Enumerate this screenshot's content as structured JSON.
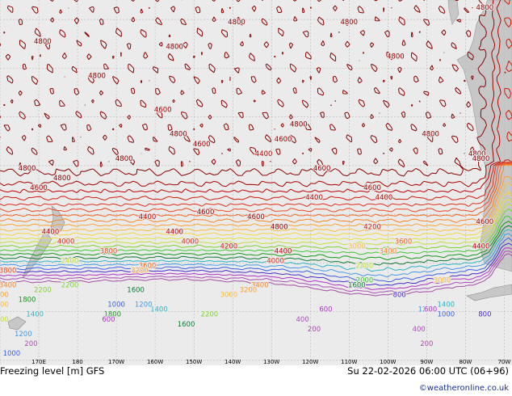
{
  "map": {
    "title": "Freezing level [m] GFS",
    "run": "Su 22-02-2026 06:00 UTC (06+96)",
    "credit": "©weatheronline.co.uk",
    "colors": {
      "background": "#ebebeb",
      "land": "#c7c7c7",
      "grid": "#b9b9b9"
    },
    "longitude_labels": [
      "170E",
      "180",
      "170W",
      "160W",
      "150W",
      "140W",
      "130W",
      "120W",
      "110W",
      "100W",
      "90W",
      "80W",
      "70W"
    ],
    "contour_levels": [
      {
        "value": "4800",
        "color": "#8b0000"
      },
      {
        "value": "4600",
        "color": "#a60000"
      },
      {
        "value": "4400",
        "color": "#c00000"
      },
      {
        "value": "4200",
        "color": "#d11a0a"
      },
      {
        "value": "4000",
        "color": "#e0301a"
      },
      {
        "value": "3800",
        "color": "#ee4a1c"
      },
      {
        "value": "3600",
        "color": "#f5631d"
      },
      {
        "value": "3400",
        "color": "#f98324"
      },
      {
        "value": "3200",
        "color": "#fba232"
      },
      {
        "value": "3000",
        "color": "#fbbc3d"
      },
      {
        "value": "2800",
        "color": "#f7d53d"
      },
      {
        "value": "2600",
        "color": "#e4e23a"
      },
      {
        "value": "2400",
        "color": "#c3e035"
      },
      {
        "value": "2200",
        "color": "#7fd32c"
      },
      {
        "value": "2000",
        "color": "#3ec82e"
      },
      {
        "value": "1800",
        "color": "#139b15"
      },
      {
        "value": "1600",
        "color": "#0d7c35"
      },
      {
        "value": "1400",
        "color": "#2bb4c6"
      },
      {
        "value": "1200",
        "color": "#4499e9"
      },
      {
        "value": "1000",
        "color": "#3d5fe8"
      },
      {
        "value": "800",
        "color": "#4a2dcc"
      },
      {
        "value": "600",
        "color": "#b033c9"
      },
      {
        "value": "400",
        "color": "#a850b8"
      },
      {
        "value": "200",
        "color": "#a44ea6"
      }
    ],
    "labels": [
      {
        "text": "4800",
        "level": "4800",
        "lon": 171,
        "lat": 5
      },
      {
        "text": "4800",
        "level": "4800",
        "lon": 167,
        "lat": -21
      },
      {
        "text": "4800",
        "level": "4800",
        "lon": 176,
        "lat": -23
      },
      {
        "text": "4800",
        "level": "4800",
        "lon": 185,
        "lat": -2
      },
      {
        "text": "4800",
        "level": "4800",
        "lon": 205,
        "lat": 4
      },
      {
        "text": "4800",
        "level": "4800",
        "lon": 221,
        "lat": 9
      },
      {
        "text": "4800",
        "level": "4800",
        "lon": 250,
        "lat": 9
      },
      {
        "text": "4800",
        "level": "4800",
        "lon": 262,
        "lat": 2
      },
      {
        "text": "4800",
        "level": "4800",
        "lon": 285,
        "lat": 12
      },
      {
        "text": "4800",
        "level": "4800",
        "lon": 271,
        "lat": -14
      },
      {
        "text": "4800",
        "level": "4800",
        "lon": 283,
        "lat": -18
      },
      {
        "text": "4800",
        "level": "4800",
        "lon": 237,
        "lat": -12
      },
      {
        "text": "4800",
        "level": "4800",
        "lon": 206,
        "lat": -14
      },
      {
        "text": "4800",
        "level": "4800",
        "lon": 192,
        "lat": -19
      },
      {
        "text": "4800",
        "level": "4800",
        "lon": 232,
        "lat": -33
      },
      {
        "text": "4800",
        "level": "4800",
        "lon": 284,
        "lat": -19
      },
      {
        "text": "4600",
        "level": "4600",
        "lon": 202,
        "lat": -9
      },
      {
        "text": "4600",
        "level": "4600",
        "lon": 212,
        "lat": -16
      },
      {
        "text": "4600",
        "level": "4600",
        "lon": 233,
        "lat": -15
      },
      {
        "text": "4600",
        "level": "4600",
        "lon": 243,
        "lat": -21
      },
      {
        "text": "4600",
        "level": "4600",
        "lon": 256,
        "lat": -25
      },
      {
        "text": "4600",
        "level": "4600",
        "lon": 170,
        "lat": -25
      },
      {
        "text": "4600",
        "level": "4600",
        "lon": 213,
        "lat": -30
      },
      {
        "text": "4600",
        "level": "4600",
        "lon": 226,
        "lat": -31
      },
      {
        "text": "4600",
        "level": "4600",
        "lon": 285,
        "lat": -32
      },
      {
        "text": "4400",
        "level": "4400",
        "lon": 228,
        "lat": -18
      },
      {
        "text": "4400",
        "level": "4400",
        "lon": 241,
        "lat": -27
      },
      {
        "text": "4400",
        "level": "4400",
        "lon": 259,
        "lat": -27
      },
      {
        "text": "4400",
        "level": "4400",
        "lon": 198,
        "lat": -31
      },
      {
        "text": "4400",
        "level": "4400",
        "lon": 205,
        "lat": -34
      },
      {
        "text": "4400",
        "level": "4400",
        "lon": 173,
        "lat": -34
      },
      {
        "text": "4400",
        "level": "4400",
        "lon": 233,
        "lat": -38
      },
      {
        "text": "4400",
        "level": "4400",
        "lon": 284,
        "lat": -37
      },
      {
        "text": "4200",
        "level": "4200",
        "lon": 256,
        "lat": -33
      },
      {
        "text": "4200",
        "level": "4200",
        "lon": 219,
        "lat": -37
      },
      {
        "text": "4000",
        "level": "4000",
        "lon": 177,
        "lat": -36
      },
      {
        "text": "4000",
        "level": "4000",
        "lon": 209,
        "lat": -36
      },
      {
        "text": "4000",
        "level": "4000",
        "lon": 231,
        "lat": -40
      },
      {
        "text": "3600",
        "level": "3600",
        "lon": 264,
        "lat": -36
      },
      {
        "text": "3600",
        "level": "3600",
        "lon": 198,
        "lat": -41
      },
      {
        "text": "3800",
        "level": "3800",
        "lon": 188,
        "lat": -38
      },
      {
        "text": "3800",
        "level": "3800",
        "lon": 162,
        "lat": -42
      },
      {
        "text": "3400",
        "level": "3400",
        "lon": 162,
        "lat": -45
      },
      {
        "text": "3400",
        "level": "3400",
        "lon": 227,
        "lat": -45
      },
      {
        "text": "3400",
        "level": "3400",
        "lon": 260,
        "lat": -38
      },
      {
        "text": "3200",
        "level": "3200",
        "lon": 196,
        "lat": -42
      },
      {
        "text": "3200",
        "level": "3200",
        "lon": 224,
        "lat": -46
      },
      {
        "text": "3200",
        "level": "3200",
        "lon": 160,
        "lat": -47
      },
      {
        "text": "3000",
        "level": "3000",
        "lon": 252,
        "lat": -37
      },
      {
        "text": "3000",
        "level": "3000",
        "lon": 274,
        "lat": -44
      },
      {
        "text": "3000",
        "level": "3000",
        "lon": 160,
        "lat": -49
      },
      {
        "text": "3000",
        "level": "3000",
        "lon": 219,
        "lat": -47
      },
      {
        "text": "2400",
        "level": "2400",
        "lon": 178,
        "lat": -40
      },
      {
        "text": "2400",
        "level": "2400",
        "lon": 254,
        "lat": -41
      },
      {
        "text": "2400",
        "level": "2400",
        "lon": 160,
        "lat": -52
      },
      {
        "text": "2200",
        "level": "2200",
        "lon": 171,
        "lat": -46
      },
      {
        "text": "2200",
        "level": "2200",
        "lon": 178,
        "lat": -45
      },
      {
        "text": "2200",
        "level": "2200",
        "lon": 214,
        "lat": -51
      },
      {
        "text": "2000",
        "level": "2000",
        "lon": 254,
        "lat": -44
      },
      {
        "text": "1600",
        "level": "1600",
        "lon": 195,
        "lat": -46
      },
      {
        "text": "1600",
        "level": "1600",
        "lon": 252,
        "lat": -45
      },
      {
        "text": "1600",
        "level": "1600",
        "lon": 208,
        "lat": -53
      },
      {
        "text": "1800",
        "level": "1800",
        "lon": 167,
        "lat": -48
      },
      {
        "text": "1800",
        "level": "1800",
        "lon": 189,
        "lat": -51
      },
      {
        "text": "1400",
        "level": "1400",
        "lon": 169,
        "lat": -51
      },
      {
        "text": "1400",
        "level": "1400",
        "lon": 201,
        "lat": -50
      },
      {
        "text": "1400",
        "level": "1400",
        "lon": 275,
        "lat": -49
      },
      {
        "text": "1200",
        "level": "1200",
        "lon": 197,
        "lat": -49
      },
      {
        "text": "1200",
        "level": "1200",
        "lon": 166,
        "lat": -55
      },
      {
        "text": "1200",
        "level": "1200",
        "lon": 270,
        "lat": -50
      },
      {
        "text": "1000",
        "level": "1000",
        "lon": 190,
        "lat": -49
      },
      {
        "text": "1000",
        "level": "1000",
        "lon": 163,
        "lat": -59
      },
      {
        "text": "1000",
        "level": "1000",
        "lon": 275,
        "lat": -51
      },
      {
        "text": "800",
        "level": "800",
        "lon": 285,
        "lat": -51
      },
      {
        "text": "800",
        "level": "800",
        "lon": 263,
        "lat": -47
      },
      {
        "text": "600",
        "level": "600",
        "lon": 244,
        "lat": -50
      },
      {
        "text": "600",
        "level": "600",
        "lon": 271,
        "lat": -50
      },
      {
        "text": "600",
        "level": "600",
        "lon": 188,
        "lat": -52
      },
      {
        "text": "400",
        "level": "400",
        "lon": 238,
        "lat": -52
      },
      {
        "text": "400",
        "level": "400",
        "lon": 268,
        "lat": -54
      },
      {
        "text": "200",
        "level": "200",
        "lon": 241,
        "lat": -54
      },
      {
        "text": "200",
        "level": "200",
        "lon": 270,
        "lat": -57
      },
      {
        "text": "200",
        "level": "200",
        "lon": 168,
        "lat": -57
      }
    ]
  }
}
